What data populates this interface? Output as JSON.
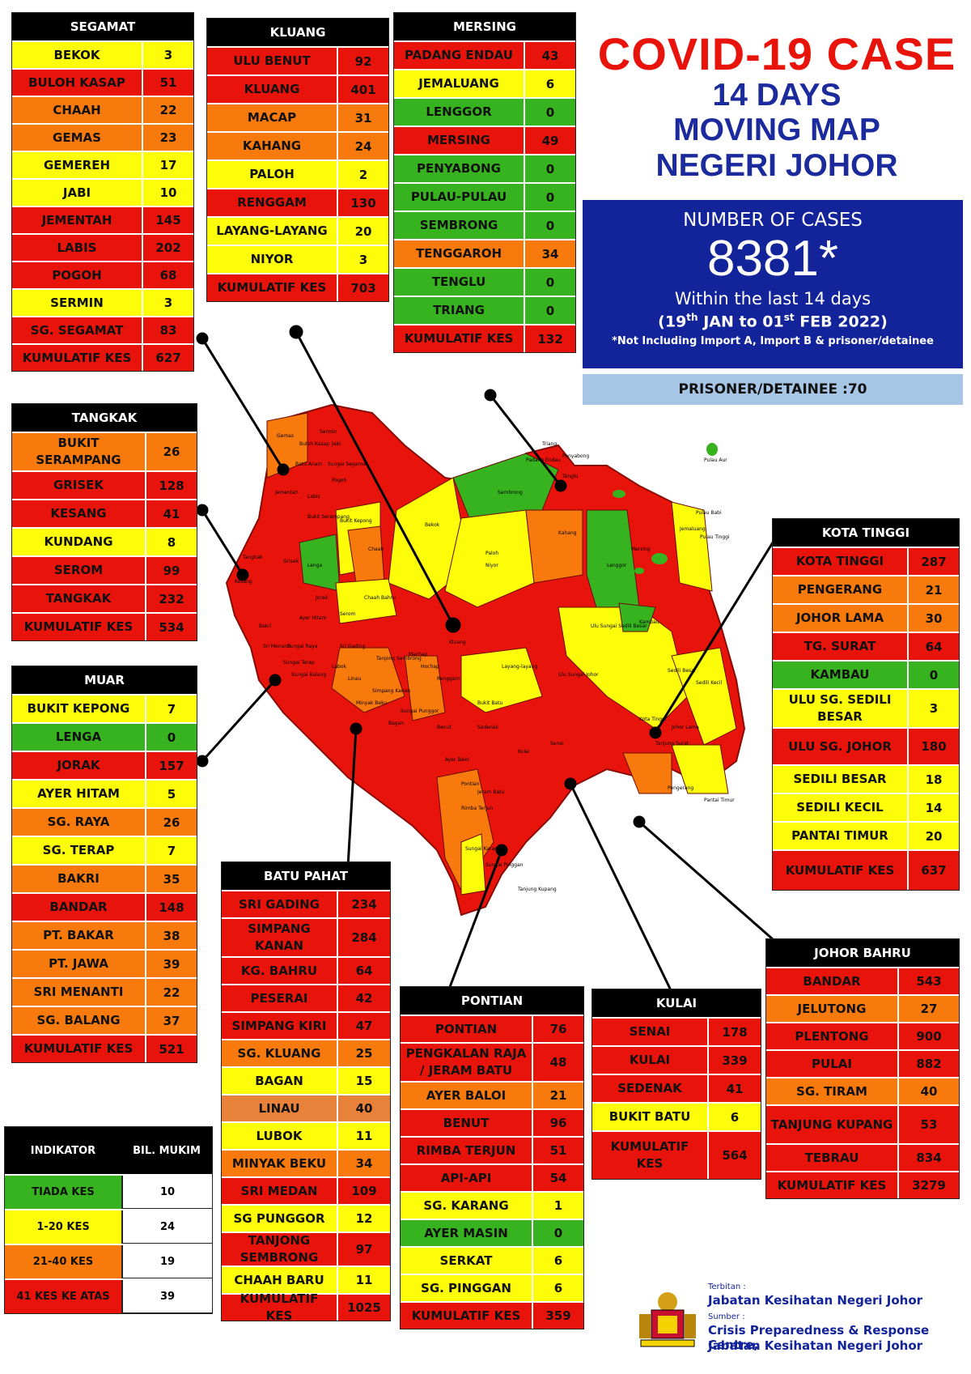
{
  "title": {
    "line1": "COVID-19 CASE",
    "line2": "14 DAYS",
    "line3": "MOVING MAP",
    "line4": "NEGERI JOHOR"
  },
  "summary": {
    "label": "NUMBER OF CASES",
    "total": "8381*",
    "within": "Within the last 14 days",
    "range_a": "(19",
    "range_sup1": "th",
    "range_b": " JAN to 01",
    "range_sup2": "st",
    "range_c": " FEB 2022)",
    "note": "*Not Including Import A, Import B & prisoner/detainee",
    "prisoner": "PRISONER/DETAINEE :70"
  },
  "colors": {
    "red": "#e8140c",
    "yellow": "#fdfd0a",
    "orange": "#f97a0c",
    "green": "#37b31f",
    "navy": "#13239a",
    "light_blue": "#a7c6e6"
  },
  "districts": {
    "segamat": {
      "name": "SEGAMAT",
      "rows": [
        {
          "n": "BEKOK",
          "v": "3",
          "c": "yel"
        },
        {
          "n": "BULOH KASAP",
          "v": "51",
          "c": "red"
        },
        {
          "n": "CHAAH",
          "v": "22",
          "c": "ora"
        },
        {
          "n": "GEMAS",
          "v": "23",
          "c": "ora"
        },
        {
          "n": "GEMEREH",
          "v": "17",
          "c": "yel"
        },
        {
          "n": "JABI",
          "v": "10",
          "c": "yel"
        },
        {
          "n": "JEMENTAH",
          "v": "145",
          "c": "red"
        },
        {
          "n": "LABIS",
          "v": "202",
          "c": "red"
        },
        {
          "n": "POGOH",
          "v": "68",
          "c": "red"
        },
        {
          "n": "SERMIN",
          "v": "3",
          "c": "yel"
        },
        {
          "n": "SG. SEGAMAT",
          "v": "83",
          "c": "red"
        },
        {
          "n": "KUMULATIF KES",
          "v": "627",
          "c": "red"
        }
      ]
    },
    "kluang": {
      "name": "KLUANG",
      "rows": [
        {
          "n": "ULU BENUT",
          "v": "92",
          "c": "red"
        },
        {
          "n": "KLUANG",
          "v": "401",
          "c": "red"
        },
        {
          "n": "MACAP",
          "v": "31",
          "c": "ora"
        },
        {
          "n": "KAHANG",
          "v": "24",
          "c": "ora"
        },
        {
          "n": "PALOH",
          "v": "2",
          "c": "yel"
        },
        {
          "n": "RENGGAM",
          "v": "130",
          "c": "red"
        },
        {
          "n": "LAYANG-LAYANG",
          "v": "20",
          "c": "yel"
        },
        {
          "n": "NIYOR",
          "v": "3",
          "c": "yel"
        },
        {
          "n": "KUMULATIF KES",
          "v": "703",
          "c": "red"
        }
      ]
    },
    "mersing": {
      "name": "MERSING",
      "rows": [
        {
          "n": "PADANG ENDAU",
          "v": "43",
          "c": "red"
        },
        {
          "n": "JEMALUANG",
          "v": "6",
          "c": "yel"
        },
        {
          "n": "LENGGOR",
          "v": "0",
          "c": "grn"
        },
        {
          "n": "MERSING",
          "v": "49",
          "c": "red"
        },
        {
          "n": "PENYABONG",
          "v": "0",
          "c": "grn"
        },
        {
          "n": "PULAU-PULAU",
          "v": "0",
          "c": "grn"
        },
        {
          "n": "SEMBRONG",
          "v": "0",
          "c": "grn"
        },
        {
          "n": "TENGGAROH",
          "v": "34",
          "c": "ora"
        },
        {
          "n": "TENGLU",
          "v": "0",
          "c": "grn"
        },
        {
          "n": "TRIANG",
          "v": "0",
          "c": "grn"
        },
        {
          "n": "KUMULATIF KES",
          "v": "132",
          "c": "red"
        }
      ]
    },
    "tangkak": {
      "name": "TANGKAK",
      "rows": [
        {
          "n": "BUKIT SERAMPANG",
          "v": "26",
          "c": "ora"
        },
        {
          "n": "GRISEK",
          "v": "128",
          "c": "red"
        },
        {
          "n": "KESANG",
          "v": "41",
          "c": "red"
        },
        {
          "n": "KUNDANG",
          "v": "8",
          "c": "yel"
        },
        {
          "n": "SEROM",
          "v": "99",
          "c": "red"
        },
        {
          "n": "TANGKAK",
          "v": "232",
          "c": "red"
        },
        {
          "n": "KUMULATIF KES",
          "v": "534",
          "c": "red"
        }
      ]
    },
    "muar": {
      "name": "MUAR",
      "rows": [
        {
          "n": "BUKIT KEPONG",
          "v": "7",
          "c": "yel"
        },
        {
          "n": "LENGA",
          "v": "0",
          "c": "grn"
        },
        {
          "n": "JORAK",
          "v": "157",
          "c": "red"
        },
        {
          "n": "AYER HITAM",
          "v": "5",
          "c": "yel"
        },
        {
          "n": "SG. RAYA",
          "v": "26",
          "c": "ora"
        },
        {
          "n": "SG. TERAP",
          "v": "7",
          "c": "yel"
        },
        {
          "n": "BAKRI",
          "v": "35",
          "c": "ora"
        },
        {
          "n": "BANDAR",
          "v": "148",
          "c": "red"
        },
        {
          "n": "PT. BAKAR",
          "v": "38",
          "c": "ora"
        },
        {
          "n": "PT. JAWA",
          "v": "39",
          "c": "ora"
        },
        {
          "n": "SRI MENANTI",
          "v": "22",
          "c": "ora"
        },
        {
          "n": "SG. BALANG",
          "v": "37",
          "c": "ora"
        },
        {
          "n": "KUMULATIF KES",
          "v": "521",
          "c": "red"
        }
      ]
    },
    "kota_tinggi": {
      "name": "KOTA TINGGI",
      "rows": [
        {
          "n": "KOTA TINGGI",
          "v": "287",
          "c": "red"
        },
        {
          "n": "PENGERANG",
          "v": "21",
          "c": "ora"
        },
        {
          "n": "JOHOR LAMA",
          "v": "30",
          "c": "ora"
        },
        {
          "n": "TG. SURAT",
          "v": "64",
          "c": "red"
        },
        {
          "n": "KAMBAU",
          "v": "0",
          "c": "grn"
        },
        {
          "n": "ULU SG. SEDILI BESAR",
          "v": "3",
          "c": "yel"
        },
        {
          "n": "ULU  SG. JOHOR",
          "v": "180",
          "c": "red"
        },
        {
          "n": "SEDILI BESAR",
          "v": "18",
          "c": "yel"
        },
        {
          "n": "SEDILI KECIL",
          "v": "14",
          "c": "yel"
        },
        {
          "n": "PANTAI TIMUR",
          "v": "20",
          "c": "yel"
        },
        {
          "n": "KUMULATIF KES",
          "v": "637",
          "c": "red"
        }
      ]
    },
    "batu_pahat": {
      "name": "BATU PAHAT",
      "rows": [
        {
          "n": "SRI GADING",
          "v": "234",
          "c": "red"
        },
        {
          "n": "SIMPANG KANAN",
          "v": "284",
          "c": "red"
        },
        {
          "n": "KG. BAHRU",
          "v": "64",
          "c": "red"
        },
        {
          "n": "PESERAI",
          "v": "42",
          "c": "red"
        },
        {
          "n": "SIMPANG KIRI",
          "v": "47",
          "c": "red"
        },
        {
          "n": "SG. KLUANG",
          "v": "25",
          "c": "ora"
        },
        {
          "n": "BAGAN",
          "v": "15",
          "c": "yel"
        },
        {
          "n": "LINAU",
          "v": "40",
          "c": "ltor"
        },
        {
          "n": "LUBOK",
          "v": "11",
          "c": "yel"
        },
        {
          "n": "MINYAK BEKU",
          "v": "34",
          "c": "ora"
        },
        {
          "n": "SRI MEDAN",
          "v": "109",
          "c": "red"
        },
        {
          "n": "SG PUNGGOR",
          "v": "12",
          "c": "yel"
        },
        {
          "n": "TANJONG SEMBRONG",
          "v": "97",
          "c": "red"
        },
        {
          "n": "CHAAH BARU",
          "v": "11",
          "c": "yel"
        },
        {
          "n": "KUMULATIF KES",
          "v": "1025",
          "c": "red"
        }
      ]
    },
    "pontian": {
      "name": "PONTIAN",
      "rows": [
        {
          "n": "PONTIAN",
          "v": "76",
          "c": "red"
        },
        {
          "n": "PENGKALAN RAJA / JERAM BATU",
          "v": "48",
          "c": "red"
        },
        {
          "n": "AYER BALOI",
          "v": "21",
          "c": "ora"
        },
        {
          "n": "BENUT",
          "v": "96",
          "c": "red"
        },
        {
          "n": "RIMBA TERJUN",
          "v": "51",
          "c": "red"
        },
        {
          "n": "API-API",
          "v": "54",
          "c": "red"
        },
        {
          "n": "SG. KARANG",
          "v": "1",
          "c": "yel"
        },
        {
          "n": "AYER MASIN",
          "v": "0",
          "c": "grn"
        },
        {
          "n": "SERKAT",
          "v": "6",
          "c": "yel"
        },
        {
          "n": "SG. PINGGAN",
          "v": "6",
          "c": "yel"
        },
        {
          "n": "KUMULATIF KES",
          "v": "359",
          "c": "red"
        }
      ]
    },
    "kulai": {
      "name": "KULAI",
      "rows": [
        {
          "n": "SENAI",
          "v": "178",
          "c": "red"
        },
        {
          "n": "KULAI",
          "v": "339",
          "c": "red"
        },
        {
          "n": "SEDENAK",
          "v": "41",
          "c": "red"
        },
        {
          "n": "BUKIT BATU",
          "v": "6",
          "c": "yel"
        },
        {
          "n": "KUMULATIF KES",
          "v": "564",
          "c": "red"
        }
      ]
    },
    "johor_bahru": {
      "name": "JOHOR BAHRU",
      "rows": [
        {
          "n": "BANDAR",
          "v": "543",
          "c": "red"
        },
        {
          "n": "JELUTONG",
          "v": "27",
          "c": "ora"
        },
        {
          "n": "PLENTONG",
          "v": "900",
          "c": "red"
        },
        {
          "n": "PULAI",
          "v": "882",
          "c": "red"
        },
        {
          "n": "SG. TIRAM",
          "v": "40",
          "c": "ora"
        },
        {
          "n": "TANJUNG KUPANG",
          "v": "53",
          "c": "red"
        },
        {
          "n": "TEBRAU",
          "v": "834",
          "c": "red"
        },
        {
          "n": "KUMULATIF KES",
          "v": "3279",
          "c": "red"
        }
      ]
    }
  },
  "legend": {
    "h1": "INDIKATOR",
    "h2": "BIL. MUKIM",
    "rows": [
      {
        "n": "TIADA KES",
        "v": "10",
        "c": "grn"
      },
      {
        "n": "1-20 KES",
        "v": "24",
        "c": "yel"
      },
      {
        "n": "21-40 KES",
        "v": "19",
        "c": "ora"
      },
      {
        "n": "41 KES KE ATAS",
        "v": "39",
        "c": "red"
      }
    ]
  },
  "footer": {
    "terbitan": "Terbitan :",
    "publisher": "Jabatan Kesihatan Negeri Johor",
    "sumber": "Sumber :",
    "source1": "Crisis Preparedness & Response Centre,",
    "source2": "Jabatan Kesihatan Negeri Johor"
  },
  "map_labels": [
    "Gemas",
    "Buloh Kasap",
    "Sermin",
    "Jabi",
    "Batu Anam",
    "Sungai Segamat",
    "Pogoh",
    "Jementah",
    "Labis",
    "Bukit Serampang",
    "Bukit Kepong",
    "Tangkak",
    "Grisek",
    "Lenga",
    "Chaah",
    "Bekok",
    "Sembrong",
    "Padang Endau",
    "Triang",
    "Penyabong",
    "Tenglu",
    "Jemaluang",
    "Kahang",
    "Paloh",
    "Niyor",
    "Lenggor",
    "Mersing",
    "Chaah Bahru",
    "Jorak",
    "Ayer Hitam",
    "Serom",
    "Kesang",
    "Bakri",
    "Sri Menanti",
    "Sungai Raya",
    "Sungai Terap",
    "Sungai Balang",
    "Lubok",
    "Tanjong Sembrong",
    "Machap",
    "Kluang",
    "Renggam",
    "Ulu Sungai Sedili Besar",
    "Kambau",
    "Ulu Sungai Johor",
    "Sedili Besar",
    "Sedili Kecil",
    "Kota Tinggi",
    "Johor Lama",
    "Tanjung Surat",
    "Pengerang",
    "Pantai Timur",
    "Layang-layang",
    "Sedenak",
    "Senai",
    "Kulai",
    "Pontian",
    "Jeram Batu",
    "Rimba Terjun",
    "Ayer Baloi",
    "Benut",
    "Bukit Batu",
    "Sungai Karang",
    "Sungai Pinggan",
    "Tanjung Kupang",
    "Pulau Tinggi",
    "Pulau Babi",
    "Pulau Aur",
    "Simpang Kanan",
    "Minyak Beku",
    "Linau",
    "Hochap",
    "Sri Gading",
    "Sungai Punggor",
    "Bagan"
  ]
}
